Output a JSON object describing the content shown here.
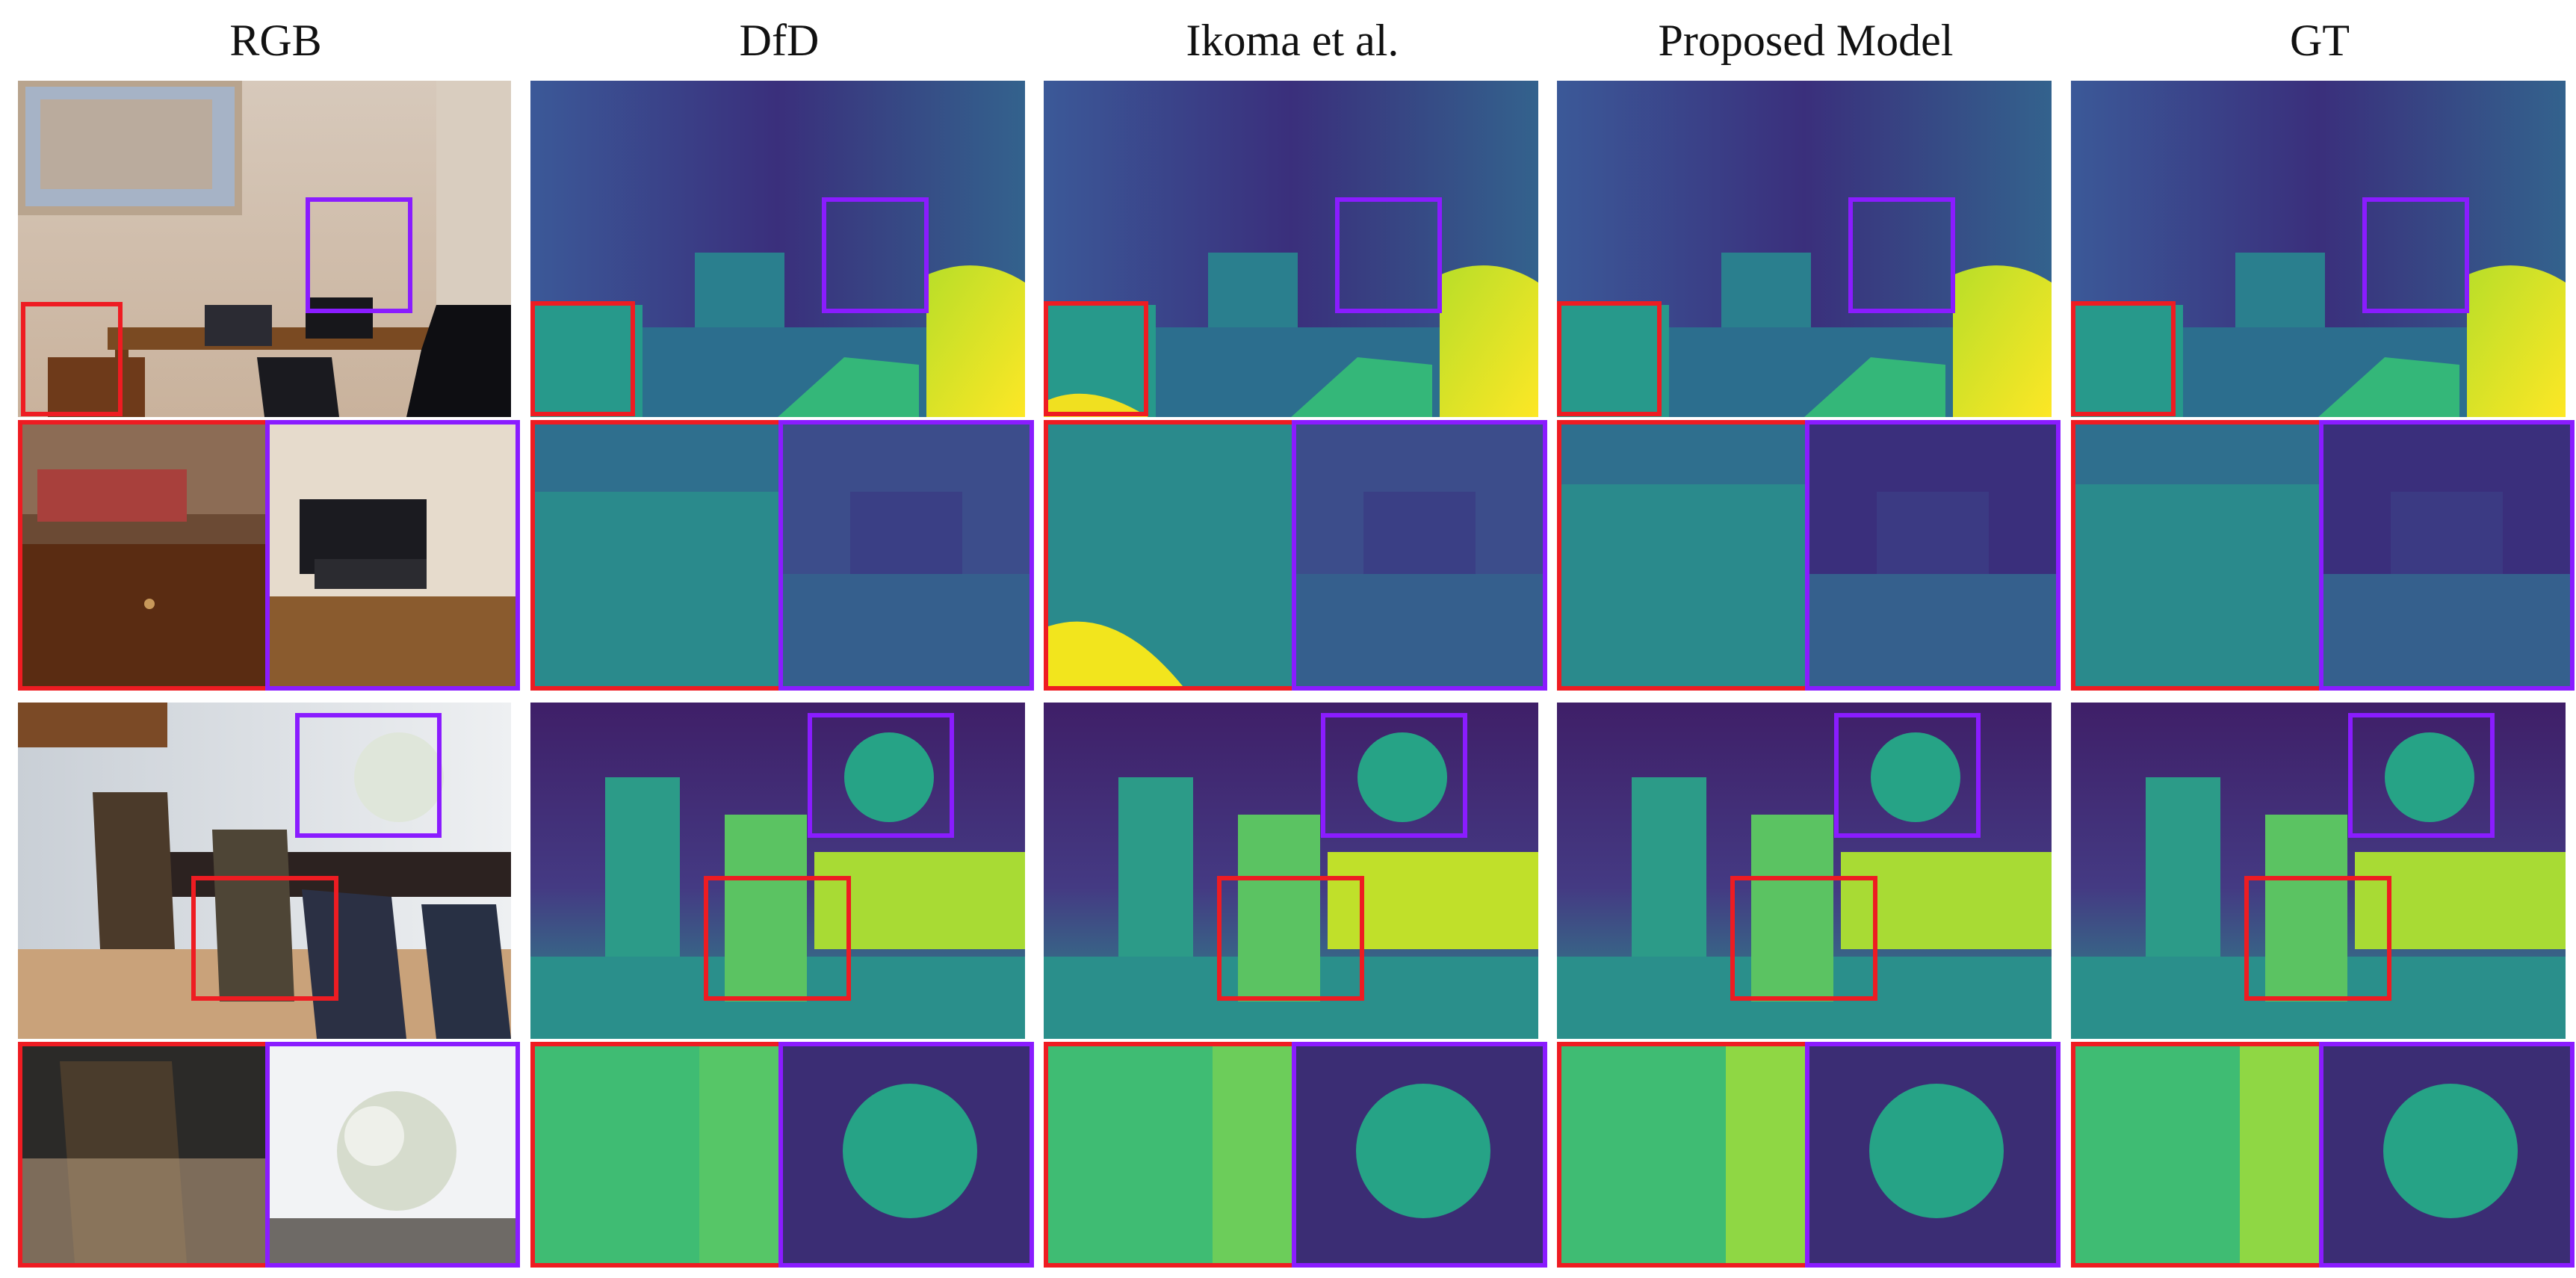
{
  "headers": {
    "rgb": "RGB",
    "dfd": "DfD",
    "ikoma": "Ikoma et al.",
    "proposed": "Proposed Model",
    "gt": "GT"
  },
  "colors": {
    "red_box": "#ee1c22",
    "purple_box": "#8a1cff",
    "depth_near": "#f2e51d",
    "depth_mid": "#23a884",
    "depth_far": "#3f2a78"
  }
}
